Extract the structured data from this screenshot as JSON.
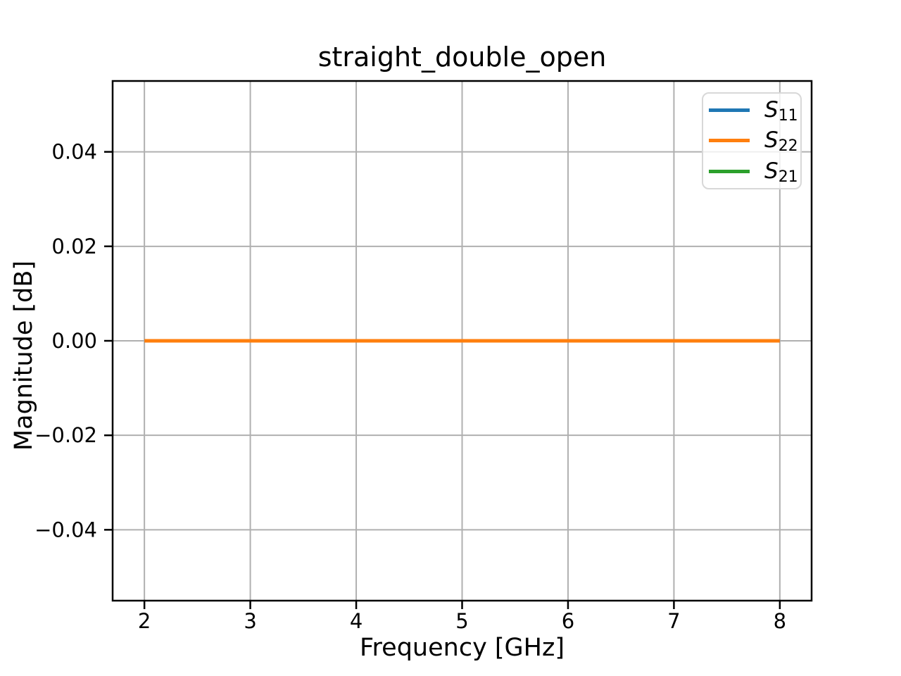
{
  "window": {
    "background": "#ffffff"
  },
  "chart_data": {
    "type": "line",
    "title": "straight_double_open",
    "xlabel": "Frequency [GHz]",
    "ylabel": "Magnitude [dB]",
    "xlim": [
      1.7,
      8.3
    ],
    "ylim": [
      -0.055,
      0.055
    ],
    "xticks": [
      2,
      3,
      4,
      5,
      6,
      7,
      8
    ],
    "xtick_labels": [
      "2",
      "3",
      "4",
      "5",
      "6",
      "7",
      "8"
    ],
    "yticks": [
      0.04,
      0.02,
      0,
      -0.02,
      -0.04
    ],
    "ytick_labels": [
      "0.04",
      "0.02",
      "0.00",
      "−0.02",
      "−0.04"
    ],
    "grid": true,
    "grid_color": "#b0b0b0",
    "spine_color": "#000000",
    "legend_position": "upper right",
    "series": [
      {
        "name": "S11",
        "symbol": "S",
        "subscript": "11",
        "color": "#1f77b4",
        "x": [
          2,
          8
        ],
        "y": [
          0.0,
          0.0
        ],
        "visible_in_plot": true,
        "note": "coincident with S22 and hidden beneath it"
      },
      {
        "name": "S22",
        "symbol": "S",
        "subscript": "22",
        "color": "#ff7f0e",
        "x": [
          2,
          8
        ],
        "y": [
          0.0,
          0.0
        ],
        "visible_in_plot": true,
        "note": "flat line at 0.00 dB drawn on top"
      },
      {
        "name": "S21",
        "symbol": "S",
        "subscript": "21",
        "color": "#2ca02c",
        "x": [],
        "y": [],
        "visible_in_plot": false,
        "note": "legend entry only; no curve visible within axis range"
      }
    ]
  }
}
